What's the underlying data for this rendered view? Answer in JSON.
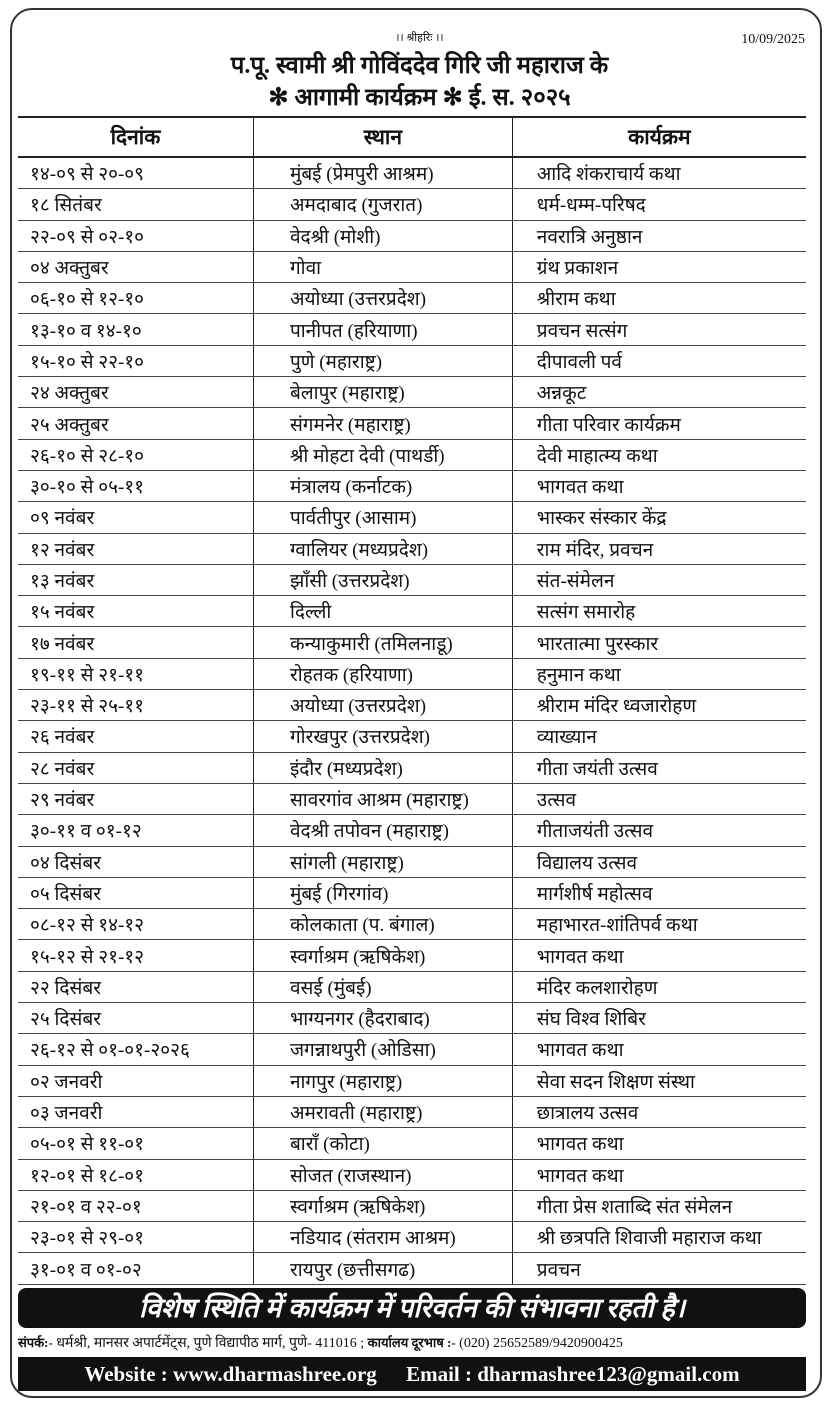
{
  "header": {
    "invocation": "।। श्रीहरिः ।।",
    "date": "10/09/2025",
    "title_line1": "प.पू. स्वामी श्री गोविंददेव गिरि जी महाराज के",
    "title_line2": "✻ आगामी कार्यक्रम ✻   ई. स. २०२५"
  },
  "table": {
    "columns": [
      "दिनांक",
      "स्थान",
      "कार्यक्रम"
    ],
    "rows": [
      [
        "१४-०९ से २०-०९",
        "मुंबई (प्रेमपुरी आश्रम)",
        "आदि शंकराचार्य कथा"
      ],
      [
        "१८ सितंबर",
        "अमदाबाद (गुजरात)",
        "धर्म-धम्म-परिषद"
      ],
      [
        "२२-०९ से ०२-१०",
        "वेदश्री (मोशी)",
        "नवरात्रि अनुष्ठान"
      ],
      [
        "०४ अक्तुबर",
        "गोवा",
        "ग्रंथ प्रकाशन"
      ],
      [
        "०६-१० से १२-१०",
        "अयोध्या (उत्तरप्रदेश)",
        "श्रीराम कथा"
      ],
      [
        "१३-१० व १४-१०",
        "पानीपत (हरियाणा)",
        "प्रवचन सत्संग"
      ],
      [
        "१५-१० से २२-१०",
        "पुणे (महाराष्ट्र)",
        "दीपावली पर्व"
      ],
      [
        "२४ अक्तुबर",
        "बेलापुर (महाराष्ट्र)",
        "अन्नकूट"
      ],
      [
        "२५ अक्तुबर",
        "संगमनेर (महाराष्ट्र)",
        "गीता परिवार कार्यक्रम"
      ],
      [
        "२६-१० से २८-१०",
        "श्री मोहटा देवी (पाथर्डी)",
        "देवी माहात्म्य कथा"
      ],
      [
        "३०-१० से ०५-११",
        "मंत्रालय (कर्नाटक)",
        "भागवत कथा"
      ],
      [
        "०९ नवंबर",
        "पार्वतीपुर (आसाम)",
        "भास्कर संस्कार केंद्र"
      ],
      [
        "१२ नवंबर",
        "ग्वालियर (मध्यप्रदेश)",
        "राम मंदिर, प्रवचन"
      ],
      [
        "१३ नवंबर",
        "झाँसी (उत्तरप्रदेश)",
        "संत-संमेलन"
      ],
      [
        "१५ नवंबर",
        "दिल्ली",
        "सत्संग समारोह"
      ],
      [
        "१७ नवंबर",
        "कन्याकुमारी (तमिलनाडू)",
        "भारतात्मा पुरस्कार"
      ],
      [
        "१९-११ से २१-११",
        "रोहतक (हरियाणा)",
        "हनुमान कथा"
      ],
      [
        "२३-११ से २५-११",
        "अयोध्या (उत्तरप्रदेश)",
        "श्रीराम मंदिर ध्वजारोहण"
      ],
      [
        "२६ नवंबर",
        "गोरखपुर (उत्तरप्रदेश)",
        "व्याख्यान"
      ],
      [
        "२८ नवंबर",
        "इंदौर (मध्यप्रदेश)",
        "गीता जयंती उत्सव"
      ],
      [
        "२९ नवंबर",
        "सावरगांव आश्रम (महाराष्ट्र)",
        "उत्सव"
      ],
      [
        "३०-११ व ०१-१२",
        "वेदश्री तपोवन (महाराष्ट्र)",
        "गीताजयंती उत्सव"
      ],
      [
        "०४ दिसंबर",
        "सांगली (महाराष्ट्र)",
        "विद्यालय उत्सव"
      ],
      [
        "०५ दिसंबर",
        "मुंबई (गिरगांव)",
        "मार्गशीर्ष महोत्सव"
      ],
      [
        "०८-१२ से १४-१२",
        "कोलकाता (प. बंगाल)",
        "महाभारत-शांतिपर्व कथा"
      ],
      [
        "१५-१२ से २१-१२",
        "स्वर्गाश्रम (ऋषिकेश)",
        "भागवत कथा"
      ],
      [
        "२२ दिसंबर",
        "वसई (मुंबई)",
        "मंदिर कलशारोहण"
      ],
      [
        "२५ दिसंबर",
        "भाग्यनगर (हैदराबाद)",
        "संघ विश्व शिबिर"
      ],
      [
        "२६-१२ से ०१-०१-२०२६",
        "जगन्नाथपुरी (ओडिसा)",
        "भागवत कथा"
      ],
      [
        "०२ जनवरी",
        "नागपुर (महाराष्ट्र)",
        "सेवा सदन शिक्षण संस्था"
      ],
      [
        "०३ जनवरी",
        "अमरावती (महाराष्ट्र)",
        "छात्रालय उत्सव"
      ],
      [
        "०५-०१ से ११-०१",
        "बाराँ (कोटा)",
        "भागवत कथा"
      ],
      [
        "१२-०१ से १८-०१",
        "सोजत (राजस्थान)",
        "भागवत कथा"
      ],
      [
        "२१-०१ व २२-०१",
        "स्वर्गाश्रम (ऋषिकेश)",
        "गीता प्रेस शताब्दि संत संमेलन"
      ],
      [
        "२३-०१ से २९-०१",
        "नडियाद (संतराम आश्रम)",
        "श्री छत्रपति शिवाजी महाराज कथा"
      ],
      [
        "३१-०१ व ०१-०२",
        "रायपुर (छत्तीसगढ)",
        "प्रवचन"
      ]
    ]
  },
  "footer": {
    "notice": "विशेष स्थिति में कार्यक्रम में परिवर्तन की संभावना रहती है।",
    "contact_label": "संपर्क:-",
    "contact_address": " धर्मश्री, मानसर अपार्टमेंट्स, पुणे विद्यापीठ मार्ग, पुणे- 411016 ; ",
    "phone_label": "कार्यालय दूरभाष :-",
    "phone": " (020) 25652589/9420900425",
    "website": "Website : www.dharmashree.org",
    "email": "Email : dharmashree123@gmail.com"
  }
}
